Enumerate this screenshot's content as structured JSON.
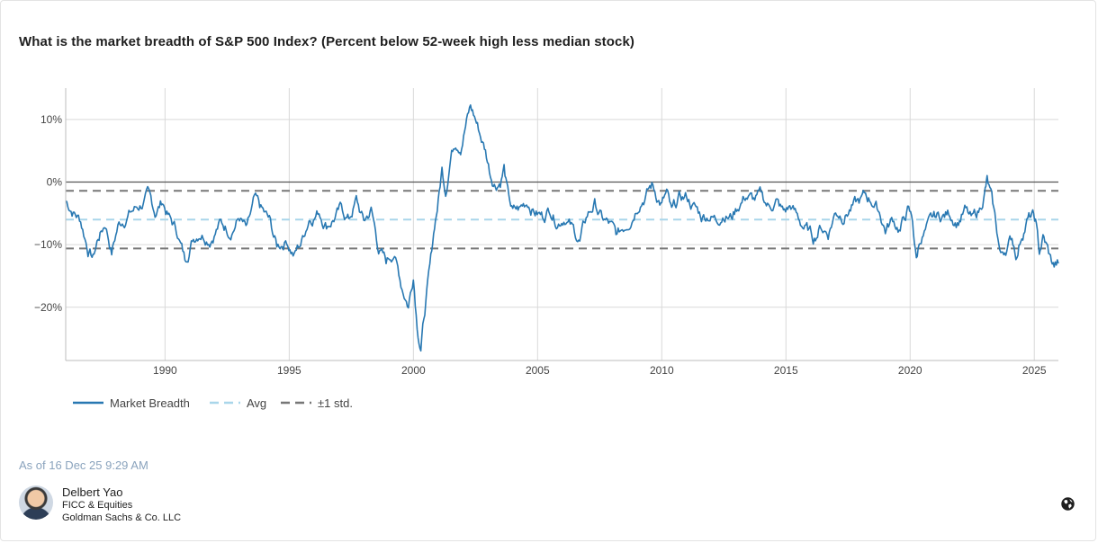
{
  "header": {
    "title": "What is the market breadth of S&P 500 Index? (Percent below 52-week high less median stock)"
  },
  "chart_data": {
    "type": "line",
    "title": "What is the market breadth of S&P 500 Index? (Percent below 52-week high less median stock)",
    "xlabel": "",
    "ylabel": "",
    "xlim": [
      1986.0,
      2025.97
    ],
    "ylim": [
      -28.5,
      15
    ],
    "x_ticks": [
      1990,
      1995,
      2000,
      2005,
      2010,
      2015,
      2020,
      2025
    ],
    "x_tick_labels": [
      "1990",
      "1995",
      "2000",
      "2005",
      "2010",
      "2015",
      "2020",
      "2025"
    ],
    "y_ticks": [
      10,
      0,
      -10,
      -20
    ],
    "y_tick_labels": [
      "10%",
      "0%",
      "−10%",
      "−20%"
    ],
    "reference_lines": [
      {
        "name": "zero",
        "value": 0,
        "color": "#555555",
        "style": "solid"
      },
      {
        "name": "Avg",
        "value": -6.0,
        "color": "#a9d6ea",
        "style": "dashed"
      },
      {
        "name": "+1 std.",
        "value": -1.4,
        "color": "#777777",
        "style": "dashed"
      },
      {
        "name": "-1 std.",
        "value": -10.6,
        "color": "#777777",
        "style": "dashed"
      }
    ],
    "series": [
      {
        "name": "Market Breadth",
        "color": "#2878b2",
        "points": [
          [
            1986.0,
            -3.0
          ],
          [
            1986.3,
            -4.5
          ],
          [
            1986.6,
            -6.0
          ],
          [
            1986.9,
            -10.5
          ],
          [
            1987.1,
            -12.0
          ],
          [
            1987.3,
            -9.0
          ],
          [
            1987.6,
            -6.5
          ],
          [
            1987.85,
            -11.0
          ],
          [
            1988.1,
            -7.0
          ],
          [
            1988.5,
            -5.0
          ],
          [
            1988.9,
            -4.0
          ],
          [
            1989.3,
            -2.5
          ],
          [
            1989.6,
            -5.0
          ],
          [
            1989.9,
            -3.0
          ],
          [
            1990.2,
            -6.0
          ],
          [
            1990.5,
            -8.0
          ],
          [
            1990.8,
            -12.5
          ],
          [
            1991.1,
            -9.0
          ],
          [
            1991.4,
            -7.5
          ],
          [
            1991.8,
            -8.5
          ],
          [
            1992.2,
            -6.5
          ],
          [
            1992.6,
            -7.5
          ],
          [
            1993.0,
            -5.5
          ],
          [
            1993.3,
            -8.0
          ],
          [
            1993.6,
            -3.5
          ],
          [
            1993.9,
            -5.0
          ],
          [
            1994.2,
            -6.5
          ],
          [
            1994.5,
            -10.5
          ],
          [
            1994.9,
            -9.0
          ],
          [
            1995.2,
            -11.5
          ],
          [
            1995.5,
            -9.5
          ],
          [
            1995.8,
            -5.5
          ],
          [
            1996.2,
            -4.5
          ],
          [
            1996.5,
            -6.5
          ],
          [
            1996.8,
            -5.5
          ],
          [
            1997.1,
            -4.5
          ],
          [
            1997.4,
            -6.0
          ],
          [
            1997.7,
            -3.0
          ],
          [
            1998.0,
            -6.5
          ],
          [
            1998.3,
            -4.5
          ],
          [
            1998.6,
            -10.5
          ],
          [
            1998.9,
            -13.0
          ],
          [
            1999.2,
            -11.0
          ],
          [
            1999.5,
            -16.0
          ],
          [
            1999.8,
            -19.5
          ],
          [
            2000.0,
            -14.5
          ],
          [
            2000.15,
            -22.0
          ],
          [
            2000.3,
            -26.0
          ],
          [
            2000.5,
            -19.0
          ],
          [
            2000.7,
            -13.0
          ],
          [
            2000.85,
            -7.0
          ],
          [
            2001.0,
            -3.0
          ],
          [
            2001.15,
            2.0
          ],
          [
            2001.3,
            -1.0
          ],
          [
            2001.5,
            4.5
          ],
          [
            2001.7,
            7.0
          ],
          [
            2001.9,
            6.5
          ],
          [
            2002.1,
            9.5
          ],
          [
            2002.3,
            12.0
          ],
          [
            2002.5,
            10.0
          ],
          [
            2002.7,
            7.5
          ],
          [
            2002.9,
            5.0
          ],
          [
            2003.1,
            1.5
          ],
          [
            2003.3,
            0.0
          ],
          [
            2003.5,
            0.5
          ],
          [
            2003.65,
            2.5
          ],
          [
            2003.8,
            -2.0
          ],
          [
            2004.0,
            -5.0
          ],
          [
            2004.3,
            -4.5
          ],
          [
            2004.6,
            -3.0
          ],
          [
            2004.9,
            -4.5
          ],
          [
            2005.2,
            -5.5
          ],
          [
            2005.5,
            -4.0
          ],
          [
            2005.8,
            -6.0
          ],
          [
            2006.1,
            -5.0
          ],
          [
            2006.4,
            -7.5
          ],
          [
            2006.7,
            -9.5
          ],
          [
            2007.0,
            -5.5
          ],
          [
            2007.3,
            -3.5
          ],
          [
            2007.6,
            -6.0
          ],
          [
            2007.9,
            -7.0
          ],
          [
            2008.2,
            -9.0
          ],
          [
            2008.5,
            -7.0
          ],
          [
            2008.8,
            -5.0
          ],
          [
            2009.1,
            -2.5
          ],
          [
            2009.4,
            -1.5
          ],
          [
            2009.6,
            -0.5
          ],
          [
            2009.8,
            -2.0
          ],
          [
            2010.0,
            -3.5
          ],
          [
            2010.2,
            -2.0
          ],
          [
            2010.4,
            -5.5
          ],
          [
            2010.7,
            -3.0
          ],
          [
            2011.0,
            -2.5
          ],
          [
            2011.3,
            -4.0
          ],
          [
            2011.6,
            -5.5
          ],
          [
            2011.9,
            -5.0
          ],
          [
            2012.2,
            -6.0
          ],
          [
            2012.5,
            -4.5
          ],
          [
            2012.8,
            -5.5
          ],
          [
            2013.1,
            -3.5
          ],
          [
            2013.4,
            -2.0
          ],
          [
            2013.7,
            -3.0
          ],
          [
            2014.0,
            -2.5
          ],
          [
            2014.3,
            -4.0
          ],
          [
            2014.6,
            -3.0
          ],
          [
            2014.9,
            -5.0
          ],
          [
            2015.2,
            -4.0
          ],
          [
            2015.5,
            -6.0
          ],
          [
            2015.8,
            -7.5
          ],
          [
            2016.1,
            -9.0
          ],
          [
            2016.4,
            -7.0
          ],
          [
            2016.7,
            -8.0
          ],
          [
            2017.0,
            -4.5
          ],
          [
            2017.3,
            -5.0
          ],
          [
            2017.6,
            -4.0
          ],
          [
            2017.9,
            -3.5
          ],
          [
            2018.2,
            -2.5
          ],
          [
            2018.5,
            -3.0
          ],
          [
            2018.8,
            -5.0
          ],
          [
            2019.0,
            -7.5
          ],
          [
            2019.3,
            -6.0
          ],
          [
            2019.6,
            -7.5
          ],
          [
            2019.9,
            -4.5
          ],
          [
            2020.1,
            -6.5
          ],
          [
            2020.25,
            -12.5
          ],
          [
            2020.4,
            -9.0
          ],
          [
            2020.7,
            -7.5
          ],
          [
            2021.0,
            -6.0
          ],
          [
            2021.3,
            -5.5
          ],
          [
            2021.6,
            -5.0
          ],
          [
            2021.9,
            -6.0
          ],
          [
            2022.2,
            -4.5
          ],
          [
            2022.5,
            -6.5
          ],
          [
            2022.8,
            -4.5
          ],
          [
            2023.0,
            -1.5
          ],
          [
            2023.1,
            0.2
          ],
          [
            2023.25,
            -2.5
          ],
          [
            2023.45,
            -7.0
          ],
          [
            2023.65,
            -12.0
          ],
          [
            2023.85,
            -10.5
          ],
          [
            2024.1,
            -9.0
          ],
          [
            2024.3,
            -11.5
          ],
          [
            2024.5,
            -8.0
          ],
          [
            2024.7,
            -6.0
          ],
          [
            2024.9,
            -5.5
          ],
          [
            2025.05,
            -6.5
          ],
          [
            2025.2,
            -11.5
          ],
          [
            2025.35,
            -9.0
          ],
          [
            2025.5,
            -10.5
          ],
          [
            2025.65,
            -12.5
          ],
          [
            2025.8,
            -13.5
          ],
          [
            2025.97,
            -13.0
          ]
        ]
      }
    ],
    "legend": {
      "position": "bottom-left",
      "entries": [
        {
          "label": "Market Breadth",
          "color": "#2878b2",
          "style": "solid"
        },
        {
          "label": "Avg",
          "color": "#a9d6ea",
          "style": "dashed"
        },
        {
          "label": "±1 std.",
          "color": "#777777",
          "style": "dashed"
        }
      ]
    },
    "grid": true
  },
  "footer": {
    "as_of": "As of 16 Dec 25 9:29 AM",
    "author": {
      "name": "Delbert Yao",
      "line1": "FICC & Equities",
      "line2": "Goldman Sachs & Co. LLC"
    },
    "icon": "globe-icon"
  }
}
